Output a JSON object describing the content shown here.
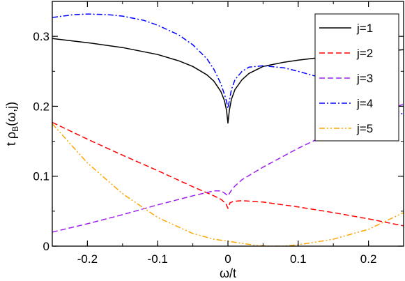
{
  "chart_data": {
    "type": "line",
    "title": "",
    "xlabel": "ω/t",
    "ylabel_main": "t ρ",
    "ylabel_sub": "B",
    "ylabel_tail": "(ω,j)",
    "xlim": [
      -0.25,
      0.25
    ],
    "ylim": [
      0,
      0.35
    ],
    "xticks": [
      -0.2,
      -0.1,
      0,
      0.1,
      0.2
    ],
    "xtick_labels": [
      "-0.2",
      "-0.1",
      "0",
      "0.1",
      "0.2"
    ],
    "yticks": [
      0,
      0.1,
      0.2,
      0.3
    ],
    "ytick_labels": [
      "0",
      "0.1",
      "0.2",
      "0.3"
    ],
    "grid": false,
    "legend_position": "top-right",
    "series": [
      {
        "name": "j=1",
        "color": "#000000",
        "dash": "solid",
        "x": [
          -0.25,
          -0.2,
          -0.15,
          -0.1,
          -0.07,
          -0.05,
          -0.03,
          -0.02,
          -0.01,
          -0.005,
          -0.002,
          0,
          0.002,
          0.005,
          0.01,
          0.02,
          0.03,
          0.05,
          0.08,
          0.1,
          0.15,
          0.2,
          0.25
        ],
        "y": [
          0.297,
          0.291,
          0.284,
          0.274,
          0.265,
          0.257,
          0.245,
          0.236,
          0.221,
          0.208,
          0.194,
          0.176,
          0.194,
          0.21,
          0.224,
          0.238,
          0.247,
          0.257,
          0.263,
          0.266,
          0.272,
          0.277,
          0.281
        ]
      },
      {
        "name": "j=2",
        "color": "#ff0000",
        "dash": "dashed",
        "x": [
          -0.25,
          -0.2,
          -0.15,
          -0.1,
          -0.05,
          -0.02,
          -0.01,
          -0.003,
          0,
          0.003,
          0.008,
          0.02,
          0.05,
          0.1,
          0.15,
          0.2,
          0.25
        ],
        "y": [
          0.177,
          0.153,
          0.13,
          0.108,
          0.085,
          0.072,
          0.067,
          0.061,
          0.054,
          0.062,
          0.064,
          0.065,
          0.063,
          0.056,
          0.048,
          0.039,
          0.029
        ]
      },
      {
        "name": "j=3",
        "color": "#a020f0",
        "dash": "dashed",
        "x": [
          -0.25,
          -0.2,
          -0.15,
          -0.1,
          -0.05,
          -0.02,
          -0.01,
          -0.005,
          0,
          0.005,
          0.01,
          0.02,
          0.05,
          0.1,
          0.15,
          0.2,
          0.25
        ],
        "y": [
          0.02,
          0.032,
          0.045,
          0.059,
          0.072,
          0.079,
          0.079,
          0.076,
          0.072,
          0.08,
          0.086,
          0.095,
          0.113,
          0.14,
          0.164,
          0.185,
          0.203
        ]
      },
      {
        "name": "j=4",
        "color": "#0000ff",
        "dash": "dashdot",
        "x": [
          -0.25,
          -0.22,
          -0.2,
          -0.17,
          -0.15,
          -0.12,
          -0.1,
          -0.07,
          -0.05,
          -0.03,
          -0.02,
          -0.01,
          -0.005,
          -0.002,
          0,
          0.002,
          0.005,
          0.01,
          0.02,
          0.03,
          0.05,
          0.08,
          0.1,
          0.15,
          0.2,
          0.25
        ],
        "y": [
          0.327,
          0.331,
          0.332,
          0.331,
          0.329,
          0.323,
          0.316,
          0.302,
          0.288,
          0.268,
          0.253,
          0.232,
          0.217,
          0.207,
          0.197,
          0.208,
          0.224,
          0.238,
          0.25,
          0.256,
          0.258,
          0.255,
          0.25,
          0.236,
          0.215,
          0.188
        ]
      },
      {
        "name": "j=5",
        "color": "#ffa500",
        "dash": "dashdotdot",
        "x": [
          -0.25,
          -0.2,
          -0.15,
          -0.1,
          -0.05,
          -0.02,
          0,
          0.02,
          0.04,
          0.06,
          0.08,
          0.1,
          0.12,
          0.15,
          0.2,
          0.25
        ],
        "y": [
          0.175,
          0.119,
          0.075,
          0.041,
          0.018,
          0.01,
          0.007,
          0.004,
          0.001,
          0.0,
          0.0,
          0.002,
          0.005,
          0.01,
          0.024,
          0.048
        ]
      }
    ]
  }
}
